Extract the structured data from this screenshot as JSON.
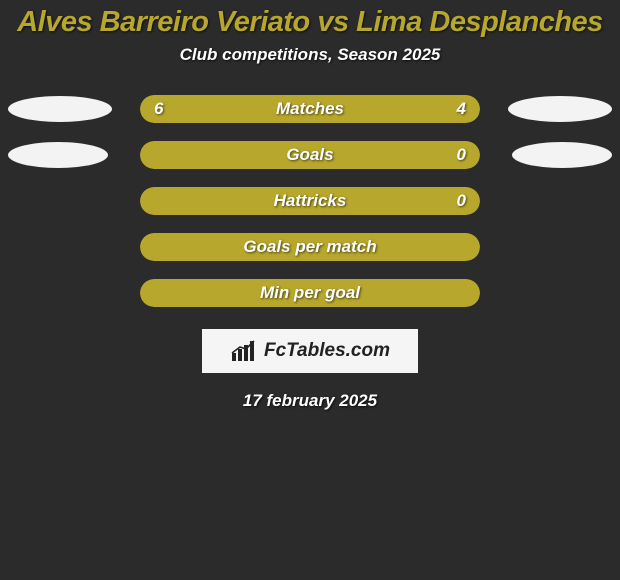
{
  "title": {
    "text": "Alves Barreiro Veriato vs Lima Desplanches",
    "color": "#b7a72d",
    "fontsize": 29
  },
  "subtitle": {
    "text": "Club competitions, Season 2025",
    "color": "#ffffff",
    "fontsize": 17
  },
  "chart": {
    "track_width": 340,
    "track_bg": "#2b2b2b",
    "bar_color": "#b7a72d",
    "label_color": "#ffffff",
    "label_fontsize": 17,
    "value_color": "#ffffff",
    "value_fontsize": 17,
    "ellipse_color": "#f3f3f3",
    "rows": [
      {
        "label": "Matches",
        "left_value": "6",
        "right_value": "4",
        "fill_left_pct": 0,
        "fill_width_pct": 100,
        "left_ellipse_width": 104,
        "right_ellipse_width": 104
      },
      {
        "label": "Goals",
        "left_value": "",
        "right_value": "0",
        "fill_left_pct": 0,
        "fill_width_pct": 100,
        "left_ellipse_width": 100,
        "right_ellipse_width": 100
      },
      {
        "label": "Hattricks",
        "left_value": "",
        "right_value": "0",
        "fill_left_pct": 0,
        "fill_width_pct": 100,
        "left_ellipse_width": 0,
        "right_ellipse_width": 0
      },
      {
        "label": "Goals per match",
        "left_value": "",
        "right_value": "",
        "fill_left_pct": 0,
        "fill_width_pct": 100,
        "left_ellipse_width": 0,
        "right_ellipse_width": 0
      },
      {
        "label": "Min per goal",
        "left_value": "",
        "right_value": "",
        "fill_left_pct": 0,
        "fill_width_pct": 100,
        "left_ellipse_width": 0,
        "right_ellipse_width": 0
      }
    ]
  },
  "branding": {
    "text": "FcTables.com",
    "fontsize": 19,
    "icon_color": "#222222"
  },
  "date": {
    "text": "17 february 2025",
    "color": "#ffffff",
    "fontsize": 17
  }
}
